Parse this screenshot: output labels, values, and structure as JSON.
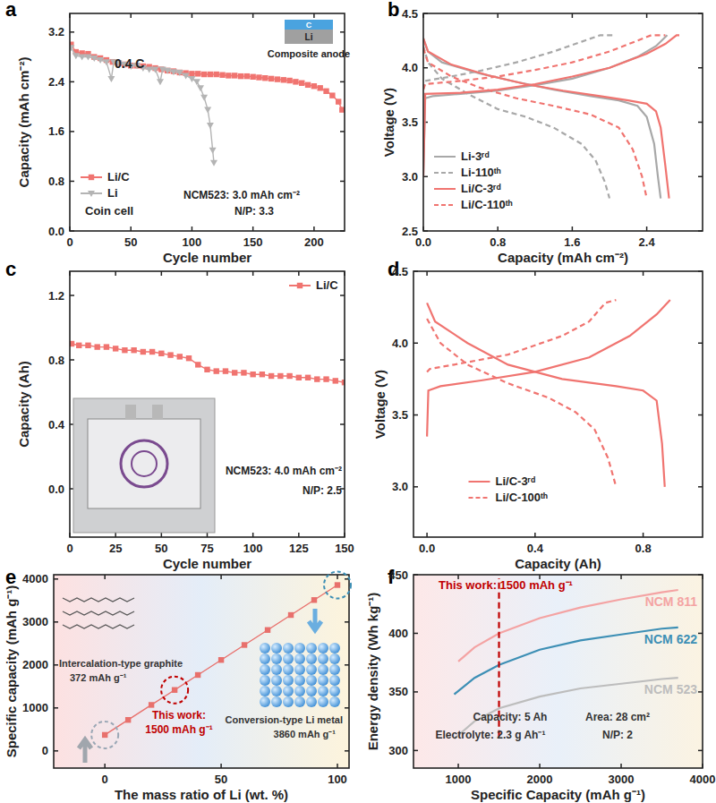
{
  "chart_data": [
    {
      "panel": "a",
      "type": "line",
      "x_label": "Cycle number",
      "y_label": "Capacity (mAh cm⁻²)",
      "xlim": [
        0,
        225
      ],
      "xticks": [
        0,
        50,
        100,
        150,
        200
      ],
      "ylim": [
        0,
        3.5
      ],
      "yticks": [
        {
          "value": 0,
          "label": "0.0"
        },
        0.8,
        1.6,
        2.4,
        3.2
      ],
      "legend": "lower left",
      "series": [
        {
          "name": "Li/C",
          "color": "#f07470",
          "marker": "square",
          "line_style": "solid",
          "x": [
            1,
            5,
            10,
            15,
            20,
            25,
            30,
            35,
            40,
            45,
            50,
            55,
            60,
            65,
            70,
            75,
            80,
            85,
            90,
            95,
            100,
            105,
            110,
            115,
            120,
            125,
            130,
            135,
            140,
            145,
            150,
            155,
            160,
            165,
            170,
            175,
            180,
            185,
            190,
            195,
            200,
            205,
            210,
            215,
            220,
            223
          ],
          "values": [
            3.0,
            2.88,
            2.86,
            2.85,
            2.8,
            2.78,
            2.75,
            2.72,
            2.7,
            2.68,
            2.66,
            2.66,
            2.65,
            2.64,
            2.62,
            2.6,
            2.58,
            2.57,
            2.55,
            2.54,
            2.53,
            2.53,
            2.52,
            2.52,
            2.52,
            2.51,
            2.5,
            2.5,
            2.49,
            2.49,
            2.48,
            2.47,
            2.46,
            2.45,
            2.44,
            2.43,
            2.42,
            2.4,
            2.38,
            2.35,
            2.33,
            2.3,
            2.25,
            2.18,
            2.08,
            1.95
          ]
        },
        {
          "name": "Li",
          "color": "#b4b4b4",
          "marker": "triangle",
          "line_style": "solid",
          "x": [
            1,
            5,
            10,
            15,
            20,
            25,
            30,
            34,
            36,
            40,
            45,
            50,
            55,
            60,
            65,
            70,
            74,
            76,
            80,
            85,
            90,
            95,
            100,
            104,
            107,
            110,
            113,
            115,
            117,
            118
          ],
          "values": [
            2.95,
            2.82,
            2.8,
            2.8,
            2.78,
            2.75,
            2.72,
            2.45,
            2.72,
            2.7,
            2.68,
            2.65,
            2.66,
            2.62,
            2.6,
            2.6,
            2.4,
            2.6,
            2.58,
            2.56,
            2.55,
            2.5,
            2.45,
            2.4,
            2.3,
            2.15,
            1.95,
            1.7,
            1.3,
            1.1
          ]
        }
      ],
      "annotations": [
        "0.4 C",
        "Coin cell",
        "NCM523: 3.0 mAh cm⁻²",
        "N/P: 3.3",
        "Composite anode",
        "C",
        "Li"
      ]
    },
    {
      "panel": "b",
      "type": "line",
      "x_label": "Capacity (mAh cm⁻²)",
      "y_label": "Voltage (V)",
      "xlim": [
        0,
        3.0
      ],
      "xticks": [
        {
          "value": 0,
          "label": "0.0"
        },
        0.8,
        1.6,
        2.4
      ],
      "ylim": [
        2.5,
        4.5
      ],
      "yticks": [
        2.5,
        {
          "value": 3,
          "label": "3.0"
        },
        3.5,
        {
          "value": 4,
          "label": "4.0"
        },
        4.5
      ],
      "legend": "lower left",
      "series": [
        {
          "name": "Li-3ʳᵈ",
          "color": "#a8a8a8",
          "marker": "none",
          "line_style": "solid",
          "charge": {
            "x": [
              0,
              0.02,
              0.1,
              0.4,
              0.8,
              1.2,
              1.6,
              2.0,
              2.3,
              2.5,
              2.62
            ],
            "values": [
              3.0,
              3.72,
              3.74,
              3.76,
              3.79,
              3.84,
              3.9,
              4.0,
              4.1,
              4.2,
              4.3
            ]
          },
          "discharge": {
            "x": [
              0,
              0.05,
              0.2,
              0.6,
              1.0,
              1.4,
              1.8,
              2.1,
              2.3,
              2.4,
              2.48,
              2.52,
              2.55
            ],
            "values": [
              4.27,
              4.15,
              4.05,
              3.95,
              3.87,
              3.8,
              3.74,
              3.7,
              3.65,
              3.55,
              3.3,
              3.0,
              2.8
            ]
          }
        },
        {
          "name": "Li-110ᵗʰ",
          "color": "#a8a8a8",
          "marker": "none",
          "line_style": "dashed",
          "charge": {
            "x": [
              0,
              0.02,
              0.3,
              0.6,
              1.0,
              1.4,
              1.7,
              1.9,
              2.05
            ],
            "values": [
              3.8,
              3.88,
              3.92,
              3.97,
              4.05,
              4.15,
              4.24,
              4.3,
              4.3
            ]
          },
          "discharge": {
            "x": [
              0,
              0.05,
              0.2,
              0.5,
              0.8,
              1.1,
              1.4,
              1.7,
              1.85,
              1.95,
              2.0
            ],
            "values": [
              4.2,
              4.05,
              3.9,
              3.75,
              3.62,
              3.55,
              3.45,
              3.3,
              3.15,
              2.95,
              2.8
            ]
          }
        },
        {
          "name": "Li/C-3ʳᵈ",
          "color": "#f07470",
          "marker": "none",
          "line_style": "solid",
          "charge": {
            "x": [
              0,
              0.02,
              0.4,
              0.8,
              1.2,
              1.6,
              2.0,
              2.4,
              2.6,
              2.72,
              2.75
            ],
            "values": [
              3.0,
              3.76,
              3.77,
              3.8,
              3.85,
              3.92,
              4.0,
              4.13,
              4.22,
              4.3,
              4.3
            ]
          },
          "discharge": {
            "x": [
              0,
              0.05,
              0.3,
              0.7,
              1.1,
              1.5,
              1.9,
              2.2,
              2.4,
              2.5,
              2.55,
              2.6,
              2.64
            ],
            "values": [
              4.27,
              4.15,
              4.03,
              3.93,
              3.85,
              3.79,
              3.74,
              3.7,
              3.67,
              3.6,
              3.45,
              3.1,
              2.8
            ]
          }
        },
        {
          "name": "Li/C-110ᵗʰ",
          "color": "#f07470",
          "marker": "none",
          "line_style": "dashed",
          "charge": {
            "x": [
              0,
              0.02,
              0.4,
              0.8,
              1.2,
              1.6,
              2.0,
              2.3,
              2.45,
              2.6
            ],
            "values": [
              3.8,
              3.85,
              3.88,
              3.92,
              3.98,
              4.05,
              4.15,
              4.25,
              4.3,
              4.3
            ]
          },
          "discharge": {
            "x": [
              0,
              0.05,
              0.3,
              0.6,
              1.0,
              1.4,
              1.8,
              2.1,
              2.25,
              2.35,
              2.4
            ],
            "values": [
              4.18,
              4.05,
              3.92,
              3.82,
              3.72,
              3.65,
              3.57,
              3.45,
              3.25,
              3.0,
              2.8
            ]
          }
        }
      ]
    },
    {
      "panel": "c",
      "type": "line",
      "x_label": "Cycle number",
      "y_label": "Capacity (Ah)",
      "xlim": [
        0,
        150
      ],
      "xticks": [
        0,
        25,
        50,
        75,
        100,
        125,
        150
      ],
      "ylim": [
        -0.3,
        1.35
      ],
      "yticks": [
        {
          "value": 0,
          "label": "0.0"
        },
        0.4,
        0.8,
        1.2
      ],
      "legend": "upper right",
      "series": [
        {
          "name": "Li/C",
          "color": "#f07470",
          "marker": "square",
          "line_style": "solid",
          "x": [
            1,
            5,
            10,
            15,
            20,
            25,
            30,
            35,
            40,
            45,
            50,
            55,
            60,
            65,
            70,
            75,
            80,
            85,
            90,
            95,
            100,
            105,
            110,
            115,
            120,
            125,
            130,
            135,
            140,
            145,
            150
          ],
          "values": [
            0.9,
            0.89,
            0.89,
            0.88,
            0.88,
            0.87,
            0.86,
            0.86,
            0.85,
            0.85,
            0.84,
            0.83,
            0.82,
            0.81,
            0.77,
            0.74,
            0.73,
            0.73,
            0.72,
            0.72,
            0.71,
            0.71,
            0.7,
            0.7,
            0.7,
            0.69,
            0.69,
            0.68,
            0.68,
            0.67,
            0.66
          ]
        }
      ],
      "annotations": [
        "NCM523: 4.0 mAh cm⁻²",
        "N/P: 2.5"
      ]
    },
    {
      "panel": "d",
      "type": "line",
      "x_label": "Capacity (Ah)",
      "y_label": "Voltage (V)",
      "xlim": [
        -0.05,
        1.02
      ],
      "xticks": [
        {
          "value": 0,
          "label": "0.0"
        },
        0.4,
        0.8
      ],
      "ylim": [
        2.65,
        4.5
      ],
      "yticks": [
        {
          "value": 3,
          "label": "3.0"
        },
        3.5,
        {
          "value": 4,
          "label": "4.0"
        },
        4.5
      ],
      "legend": "lower center",
      "series": [
        {
          "name": "Li/C-3ʳᵈ",
          "color": "#f07470",
          "marker": "none",
          "line_style": "solid",
          "charge": {
            "x": [
              0,
              0.005,
              0.05,
              0.2,
              0.4,
              0.6,
              0.75,
              0.85,
              0.9
            ],
            "values": [
              3.35,
              3.67,
              3.7,
              3.74,
              3.8,
              3.9,
              4.05,
              4.2,
              4.3
            ]
          },
          "discharge": {
            "x": [
              0,
              0.03,
              0.15,
              0.3,
              0.5,
              0.7,
              0.8,
              0.85,
              0.87,
              0.88
            ],
            "values": [
              4.28,
              4.15,
              4.0,
              3.85,
              3.75,
              3.7,
              3.67,
              3.6,
              3.3,
              3.0
            ]
          }
        },
        {
          "name": "Li/C-100ᵗʰ",
          "color": "#f07470",
          "marker": "none",
          "line_style": "dashed",
          "charge": {
            "x": [
              0,
              0.01,
              0.1,
              0.3,
              0.5,
              0.6,
              0.66,
              0.7
            ],
            "values": [
              3.8,
              3.82,
              3.85,
              3.92,
              4.05,
              4.15,
              4.28,
              4.3
            ]
          },
          "discharge": {
            "x": [
              0,
              0.05,
              0.15,
              0.3,
              0.45,
              0.55,
              0.62,
              0.67,
              0.7
            ],
            "values": [
              4.17,
              4.0,
              3.85,
              3.72,
              3.62,
              3.52,
              3.4,
              3.2,
              3.0
            ]
          }
        }
      ]
    },
    {
      "panel": "e",
      "type": "line",
      "x_label": "The mass ratio of Li (wt. %)",
      "y_label": "Specific capacity (mAh g⁻¹)",
      "xlim": [
        -22,
        105
      ],
      "xticks": [
        0,
        50,
        100
      ],
      "ylim": [
        -400,
        4100
      ],
      "yticks": [
        0,
        1000,
        2000,
        3000,
        4000
      ],
      "series": [
        {
          "name": "Specific capacity",
          "color": "#e8706c",
          "marker": "square",
          "line_style": "solid",
          "x": [
            0,
            10,
            20,
            30,
            40,
            50,
            60,
            70,
            80,
            90,
            100
          ],
          "values": [
            372,
            721,
            1070,
            1418,
            1767,
            2116,
            2465,
            2814,
            3162,
            3511,
            3860
          ]
        }
      ],
      "highlights": [
        {
          "x": 0,
          "y": 372,
          "color": "#9aa7b5"
        },
        {
          "x": 30,
          "y": 1418,
          "color": "#c00000"
        },
        {
          "x": 100,
          "y": 3860,
          "color": "#3d8fb5"
        }
      ],
      "annotations": [
        "Intercalation-type graphite",
        "372 mAh g⁻¹",
        "This work:",
        "1500 mAh g⁻¹",
        "Conversion-type Li metal",
        "3860 mAh g⁻¹"
      ]
    },
    {
      "panel": "f",
      "type": "line",
      "x_label": "Specific Capacity (mAh g⁻¹)",
      "y_label": "Energy density (Wh kg⁻¹)",
      "xlim": [
        450,
        4000
      ],
      "xticks": [
        1000,
        2000,
        3000,
        4000
      ],
      "ylim": [
        285,
        450
      ],
      "yticks": [
        300,
        350,
        400,
        450
      ],
      "series": [
        {
          "name": "NCM 811",
          "color": "#f4a3a3",
          "marker": "none",
          "line_style": "solid",
          "x": [
            1000,
            1200,
            1500,
            2000,
            2500,
            3000,
            3500,
            3700
          ],
          "values": [
            376,
            388,
            400,
            413,
            422,
            429,
            435,
            437
          ]
        },
        {
          "name": "NCM 622",
          "color": "#3d8fb5",
          "marker": "none",
          "line_style": "solid",
          "x": [
            950,
            1200,
            1500,
            2000,
            2500,
            3000,
            3500,
            3700
          ],
          "values": [
            348,
            362,
            373,
            386,
            394,
            399,
            404,
            405
          ]
        },
        {
          "name": "NCM 523",
          "color": "#bdbdbd",
          "marker": "none",
          "line_style": "solid",
          "x": [
            950,
            1200,
            1500,
            2000,
            2500,
            3000,
            3500,
            3700
          ],
          "values": [
            310,
            325,
            336,
            346,
            353,
            357,
            361,
            362
          ]
        }
      ],
      "reference_lines": [
        {
          "x": 1500,
          "y_from": 312,
          "y_to": 447,
          "label": "This work: 1500 mAh g⁻¹",
          "color": "#c00000",
          "line_style": "dashed"
        }
      ],
      "annotations": [
        "Capacity: 5 Ah",
        "Area: 28 cm²",
        "Electrolyte: 2.3 g Ah⁻¹",
        "N/P: 2"
      ]
    }
  ]
}
